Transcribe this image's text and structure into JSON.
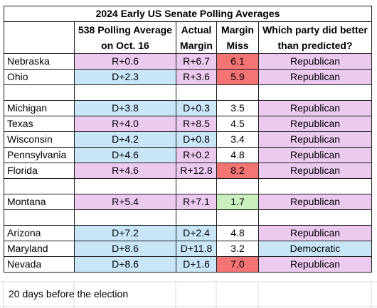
{
  "chart_data": {
    "type": "table",
    "title": "2024 Early US Senate Polling Averages",
    "columns": [
      "",
      "538 Polling Average on Oct. 16",
      "Actual Margin",
      "Margin Miss",
      "Which party did better than predicted?"
    ],
    "header_lines": {
      "col1": [
        "538 Polling Average",
        "on Oct. 16"
      ],
      "col2": [
        "Actual",
        "Margin"
      ],
      "col3": [
        "Margin",
        "Miss"
      ],
      "col4": [
        "Which party did better",
        "than predicted?"
      ]
    },
    "groups": [
      [
        {
          "state": "Nebraska",
          "poll": "R+0.6",
          "actual": "R+6.7",
          "miss": "6.1",
          "party": "Republican",
          "poll_color": "pink",
          "actual_color": "pink",
          "miss_color": "red",
          "party_color": "pink"
        },
        {
          "state": "Ohio",
          "poll": "D+2.3",
          "actual": "R+3.6",
          "miss": "5.9",
          "party": "Republican",
          "poll_color": "blue",
          "actual_color": "pink",
          "miss_color": "red",
          "party_color": "pink"
        }
      ],
      [
        {
          "state": "Michigan",
          "poll": "D+3.8",
          "actual": "D+0.3",
          "miss": "3.5",
          "party": "Republican",
          "poll_color": "blue",
          "actual_color": "blue",
          "miss_color": "none",
          "party_color": "pink"
        },
        {
          "state": "Texas",
          "poll": "R+4.0",
          "actual": "R+8.5",
          "miss": "4.5",
          "party": "Republican",
          "poll_color": "pink",
          "actual_color": "pink",
          "miss_color": "none",
          "party_color": "pink"
        },
        {
          "state": "Wisconsin",
          "poll": "D+4.2",
          "actual": "D+0.8",
          "miss": "3.4",
          "party": "Republican",
          "poll_color": "blue",
          "actual_color": "blue",
          "miss_color": "none",
          "party_color": "pink"
        },
        {
          "state": "Pennsylvania",
          "poll": "D+4.6",
          "actual": "R+0.2",
          "miss": "4.8",
          "party": "Republican",
          "poll_color": "blue",
          "actual_color": "pink",
          "miss_color": "none",
          "party_color": "pink"
        },
        {
          "state": "Florida",
          "poll": "R+4.6",
          "actual": "R+12.8",
          "miss": "8.2",
          "party": "Republican",
          "poll_color": "pink",
          "actual_color": "pink",
          "miss_color": "red",
          "party_color": "pink"
        }
      ],
      [
        {
          "state": "Montana",
          "poll": "R+5.4",
          "actual": "R+7.1",
          "miss": "1.7",
          "party": "Republican",
          "poll_color": "pink",
          "actual_color": "pink",
          "miss_color": "green",
          "party_color": "pink"
        }
      ],
      [
        {
          "state": "Arizona",
          "poll": "D+7.2",
          "actual": "D+2.4",
          "miss": "4.8",
          "party": "Republican",
          "poll_color": "blue",
          "actual_color": "blue",
          "miss_color": "none",
          "party_color": "pink"
        },
        {
          "state": "Maryland",
          "poll": "D+8.6",
          "actual": "D+11.8",
          "miss": "3.2",
          "party": "Democratic",
          "poll_color": "blue",
          "actual_color": "blue",
          "miss_color": "none",
          "party_color": "blue"
        },
        {
          "state": "Nevada",
          "poll": "D+8.6",
          "actual": "D+1.6",
          "miss": "7.0",
          "party": "Republican",
          "poll_color": "blue",
          "actual_color": "blue",
          "miss_color": "red",
          "party_color": "pink"
        }
      ]
    ],
    "colors": {
      "pink": "#eccaf0",
      "blue": "#c8e6f7",
      "red": "#f47474",
      "green": "#c9efbd",
      "border": "#1a1a1a"
    }
  },
  "footnote": "20 days before the election"
}
